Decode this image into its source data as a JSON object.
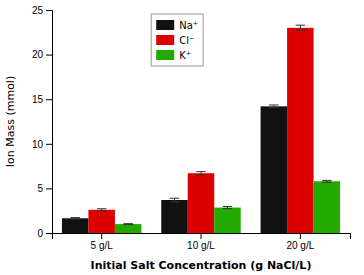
{
  "chart_data": {
    "type": "bar",
    "xlabel": "Initial Salt Concentration (g NaCl/L)",
    "ylabel": "Ion Mass (mmol)",
    "categories": [
      "5 g/L",
      "10 g/L",
      "20 g/L"
    ],
    "series": [
      {
        "name": "Na⁺",
        "color": "#111111",
        "values": [
          1.65,
          3.7,
          14.2
        ],
        "errors": [
          0.08,
          0.2,
          0.15
        ]
      },
      {
        "name": "Cl⁻",
        "color": "#dd0000",
        "values": [
          2.6,
          6.7,
          23.0
        ],
        "errors": [
          0.12,
          0.18,
          0.3
        ]
      },
      {
        "name": "K⁺",
        "color": "#22aa00",
        "values": [
          1.0,
          2.85,
          5.8
        ],
        "errors": [
          0.05,
          0.12,
          0.1
        ]
      }
    ],
    "ylim": [
      0,
      25
    ],
    "yticks": [
      0,
      5,
      10,
      15,
      20,
      25
    ],
    "grid": false,
    "legend": "top"
  }
}
